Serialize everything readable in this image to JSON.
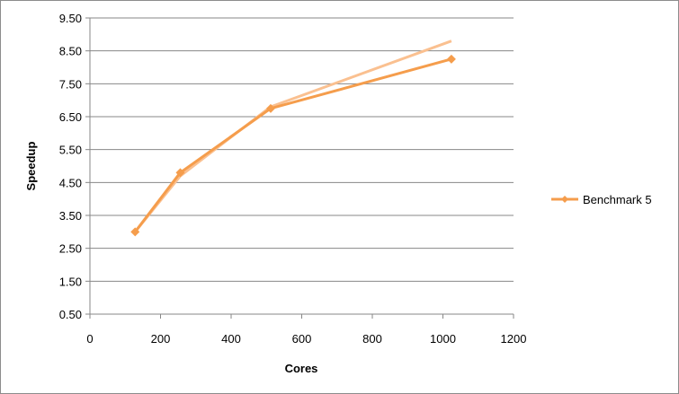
{
  "chart_data": {
    "type": "line",
    "xlabel": "Cores",
    "ylabel": "Speedup",
    "xlim": [
      0,
      1200
    ],
    "ylim": [
      0.5,
      9.5
    ],
    "x_ticks": [
      "0",
      "200",
      "400",
      "600",
      "800",
      "1000",
      "1200"
    ],
    "y_ticks": [
      "0.50",
      "1.50",
      "2.50",
      "3.50",
      "4.50",
      "5.50",
      "6.50",
      "7.50",
      "8.50",
      "9.50"
    ],
    "grid": "horizontal",
    "legend_position": "right",
    "series": [
      {
        "name": "Benchmark 5",
        "color": "#f59d4c",
        "marker": "diamond",
        "x": [
          128,
          256,
          512,
          1024
        ],
        "y": [
          3.0,
          4.8,
          6.75,
          8.25
        ]
      },
      {
        "color": "#fac090",
        "marker": "none",
        "x": [
          128,
          256,
          512,
          1024
        ],
        "y": [
          3.0,
          4.7,
          6.8,
          8.8
        ]
      }
    ]
  }
}
